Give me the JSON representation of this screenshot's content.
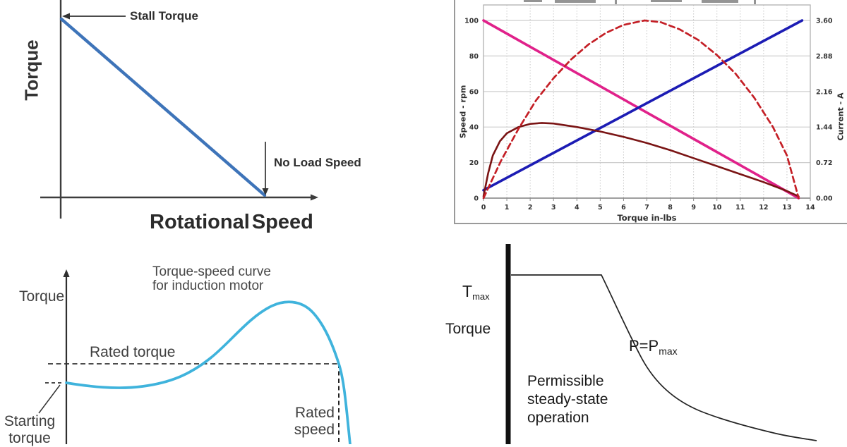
{
  "page": {
    "background": "#ffffff"
  },
  "chart_data": [
    {
      "type": "line",
      "panel": "top-left",
      "title": "",
      "xlabel": "Rotational Speed",
      "ylabel": "Torque",
      "annotations": [
        {
          "text": "Stall Torque"
        },
        {
          "text": "No Load Speed"
        }
      ],
      "grid": false,
      "series": [
        {
          "name": "dc-motor-torque-speed-line",
          "color": "#3e74b9",
          "style": "solid",
          "units": "normalized",
          "points": [
            [
              0,
              1
            ],
            [
              1,
              0
            ]
          ]
        }
      ]
    },
    {
      "type": "line",
      "panel": "top-right",
      "xlabel": "Torque in-lbs",
      "ylabel_left": "Speed - rpm",
      "ylabel_right": "Current - A",
      "xlim": [
        0,
        14
      ],
      "ylim_left": [
        0,
        100
      ],
      "ylim_right": [
        0,
        3.6
      ],
      "x_ticks": [
        0,
        1,
        2,
        3,
        4,
        5,
        6,
        7,
        8,
        9,
        10,
        11,
        12,
        13,
        14
      ],
      "left_ticks": [
        0,
        20,
        40,
        60,
        80,
        100
      ],
      "right_ticks": [
        "0.00",
        "0.72",
        "1.44",
        "2.16",
        "2.88",
        "3.60"
      ],
      "grid": {
        "horizontal": "solid",
        "vertical": "dotted"
      },
      "series": [
        {
          "name": "speed-line-magenta",
          "color": "#e0218a",
          "style": "solid",
          "width": 3.6,
          "axis": "left",
          "points": [
            [
              0,
              100
            ],
            [
              13.5,
              0
            ]
          ]
        },
        {
          "name": "current-line-blue",
          "color": "#1c1cb4",
          "style": "solid",
          "width": 3.6,
          "axis": "right",
          "points": [
            [
              0,
              0.16
            ],
            [
              13.65,
              3.6
            ]
          ]
        },
        {
          "name": "dark-red-solid-curve",
          "color": "#7a1414",
          "style": "solid",
          "width": 2.6,
          "axis": "left",
          "points": [
            [
              0,
              1
            ],
            [
              0.2,
              14
            ],
            [
              0.4,
              24
            ],
            [
              0.7,
              32
            ],
            [
              1,
              36.5
            ],
            [
              1.5,
              40
            ],
            [
              2,
              41.8
            ],
            [
              2.5,
              42.3
            ],
            [
              3,
              42
            ],
            [
              4,
              40
            ],
            [
              5,
              37.5
            ],
            [
              6,
              34.5
            ],
            [
              7,
              31
            ],
            [
              8,
              27
            ],
            [
              9,
              22.5
            ],
            [
              10,
              18
            ],
            [
              11,
              13.5
            ],
            [
              12,
              9
            ],
            [
              13,
              4
            ],
            [
              13.5,
              1
            ]
          ]
        },
        {
          "name": "red-dashed-curve",
          "color": "#c41f26",
          "style": "dashed",
          "width": 2.7,
          "axis": "left",
          "points": [
            [
              0,
              0
            ],
            [
              0.75,
              21
            ],
            [
              1.5,
              39
            ],
            [
              2.25,
              55
            ],
            [
              3,
              67.5
            ],
            [
              3.75,
              78
            ],
            [
              4.5,
              86.5
            ],
            [
              5.25,
              93
            ],
            [
              6,
              97.5
            ],
            [
              6.9,
              100
            ],
            [
              7.6,
              99
            ],
            [
              8.4,
              95
            ],
            [
              9.2,
              89
            ],
            [
              10,
              80.5
            ],
            [
              10.8,
              70
            ],
            [
              11.6,
              56.5
            ],
            [
              12.4,
              40
            ],
            [
              13,
              24
            ],
            [
              13.5,
              0
            ]
          ]
        }
      ]
    },
    {
      "type": "line",
      "panel": "bottom-left",
      "title": "Torque-speed curve\nfor induction motor",
      "ylabel": "Torque",
      "annotations": [
        {
          "text": "Rated torque"
        },
        {
          "text": "Starting\ntorque"
        },
        {
          "text": "Rated\nspeed"
        }
      ],
      "series": [
        {
          "name": "induction-motor-torque-speed-curve",
          "color": "#3fb3dc",
          "style": "solid",
          "units": "normalized",
          "points": [
            [
              0,
              0.44
            ],
            [
              0.25,
              0.42
            ],
            [
              0.45,
              0.52
            ],
            [
              0.68,
              0.85
            ],
            [
              0.82,
              1.0
            ],
            [
              0.95,
              0.58
            ],
            [
              1.0,
              0.0
            ]
          ]
        }
      ]
    },
    {
      "type": "line",
      "panel": "bottom-right",
      "ylabel": "Torque",
      "annotations": [
        {
          "text": "Tmax",
          "main": "T",
          "sub": "max"
        },
        {
          "text": "P=Pmax",
          "main": "P=P",
          "sub": "max"
        },
        {
          "text": "Permissible\nsteady-state\noperation"
        }
      ],
      "series": [
        {
          "name": "steady-state-torque-limit-curve",
          "color": "#232323",
          "style": "solid",
          "units": "normalized",
          "points": [
            [
              0,
              1
            ],
            [
              0.3,
              1
            ],
            [
              0.36,
              0.82
            ],
            [
              0.44,
              0.55
            ],
            [
              0.52,
              0.38
            ],
            [
              0.62,
              0.25
            ],
            [
              0.75,
              0.15
            ],
            [
              0.88,
              0.09
            ],
            [
              1.0,
              0.06
            ]
          ]
        }
      ]
    }
  ]
}
